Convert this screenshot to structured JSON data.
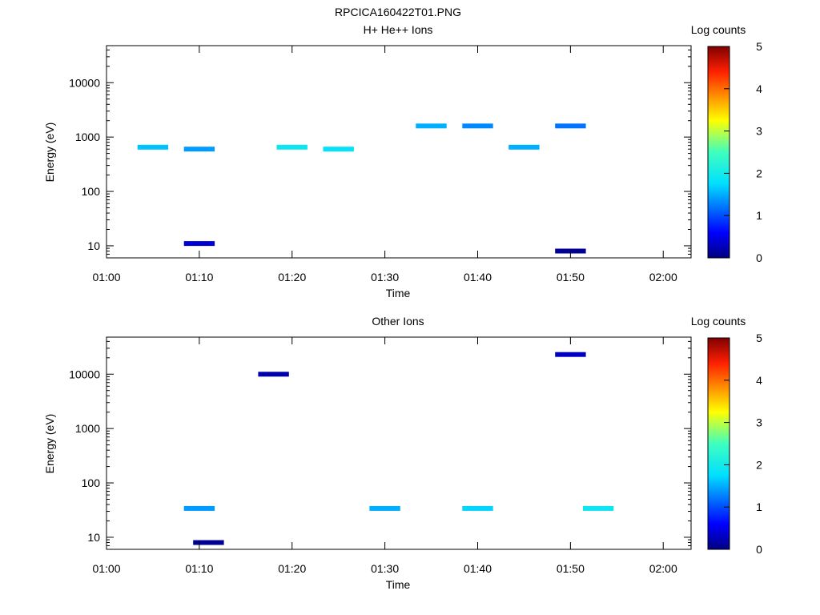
{
  "figure_title": "RPCICA160422T01.PNG",
  "chart_data": [
    {
      "type": "heatmap",
      "title": "H+ He++ Ions",
      "xlabel": "Time",
      "ylabel": "Energy (eV)",
      "x_range": [
        "01:00",
        "02:03"
      ],
      "x_ticks": [
        "01:00",
        "01:10",
        "01:20",
        "01:30",
        "01:40",
        "01:50",
        "02:00"
      ],
      "y_scale": "log",
      "y_range": [
        6,
        48000
      ],
      "y_ticks": [
        "10",
        "100",
        "1000",
        "10000"
      ],
      "colorbar": {
        "label": "Log counts",
        "ticks": [
          "0",
          "1",
          "2",
          "3",
          "4",
          "5"
        ],
        "range": [
          0,
          5
        ]
      },
      "cells": [
        {
          "t": "01:05",
          "energy": 650,
          "value": 1.6
        },
        {
          "t": "01:10",
          "energy": 600,
          "value": 1.4
        },
        {
          "t": "01:20",
          "energy": 650,
          "value": 1.9
        },
        {
          "t": "01:25",
          "energy": 600,
          "value": 1.8
        },
        {
          "t": "01:35",
          "energy": 1600,
          "value": 1.5
        },
        {
          "t": "01:40",
          "energy": 1600,
          "value": 1.3
        },
        {
          "t": "01:45",
          "energy": 650,
          "value": 1.5
        },
        {
          "t": "01:50",
          "energy": 1600,
          "value": 1.2
        },
        {
          "t": "01:10",
          "energy": 11,
          "value": 0.4
        },
        {
          "t": "01:50",
          "energy": 8,
          "value": 0.1
        }
      ]
    },
    {
      "type": "heatmap",
      "title": "Other Ions",
      "xlabel": "Time",
      "ylabel": "Energy (eV)",
      "x_range": [
        "01:00",
        "02:03"
      ],
      "x_ticks": [
        "01:00",
        "01:10",
        "01:20",
        "01:30",
        "01:40",
        "01:50",
        "02:00"
      ],
      "y_scale": "log",
      "y_range": [
        6,
        48000
      ],
      "y_ticks": [
        "10",
        "100",
        "1000",
        "10000"
      ],
      "colorbar": {
        "label": "Log counts",
        "ticks": [
          "0",
          "1",
          "2",
          "3",
          "4",
          "5"
        ],
        "range": [
          0,
          5
        ]
      },
      "cells": [
        {
          "t": "01:10",
          "energy": 34,
          "value": 1.4
        },
        {
          "t": "01:30",
          "energy": 34,
          "value": 1.5
        },
        {
          "t": "01:40",
          "energy": 34,
          "value": 1.7
        },
        {
          "t": "01:53",
          "energy": 34,
          "value": 1.9
        },
        {
          "t": "01:50",
          "energy": 23000,
          "value": 0.3
        },
        {
          "t": "01:18",
          "energy": 10000,
          "value": 0.2
        },
        {
          "t": "01:11",
          "energy": 8,
          "value": 0.1
        }
      ]
    }
  ]
}
